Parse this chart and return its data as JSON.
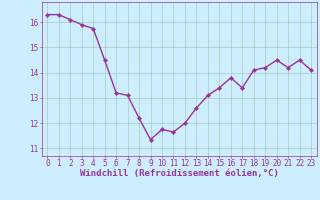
{
  "x": [
    0,
    1,
    2,
    3,
    4,
    5,
    6,
    7,
    8,
    9,
    10,
    11,
    12,
    13,
    14,
    15,
    16,
    17,
    18,
    19,
    20,
    21,
    22,
    23
  ],
  "y": [
    16.3,
    16.3,
    16.1,
    15.9,
    15.75,
    14.5,
    13.2,
    13.1,
    12.2,
    11.35,
    11.75,
    11.65,
    12.0,
    12.6,
    13.1,
    13.4,
    13.8,
    13.4,
    14.1,
    14.2,
    14.5,
    14.2,
    14.5,
    14.1
  ],
  "line_color": "#993399",
  "marker": "D",
  "marker_size": 2.2,
  "line_width": 1.0,
  "bg_color": "#cceeff",
  "grid_color": "#aaccbb",
  "xlabel": "Windchill (Refroidissement éolien,°C)",
  "xlabel_color": "#993399",
  "xlabel_fontsize": 6.5,
  "tick_color": "#993399",
  "tick_fontsize": 5.5,
  "ytick_vals": [
    11,
    12,
    13,
    14,
    15,
    16
  ],
  "ytick_labels": [
    "11",
    "12",
    "13",
    "14",
    "15",
    "16"
  ],
  "ylim": [
    10.7,
    16.8
  ],
  "xlim": [
    -0.5,
    23.5
  ],
  "xtick_labels": [
    "0",
    "1",
    "2",
    "3",
    "4",
    "5",
    "6",
    "7",
    "8",
    "9",
    "10",
    "11",
    "12",
    "13",
    "14",
    "15",
    "16",
    "17",
    "18",
    "19",
    "20",
    "21",
    "22",
    "23"
  ]
}
